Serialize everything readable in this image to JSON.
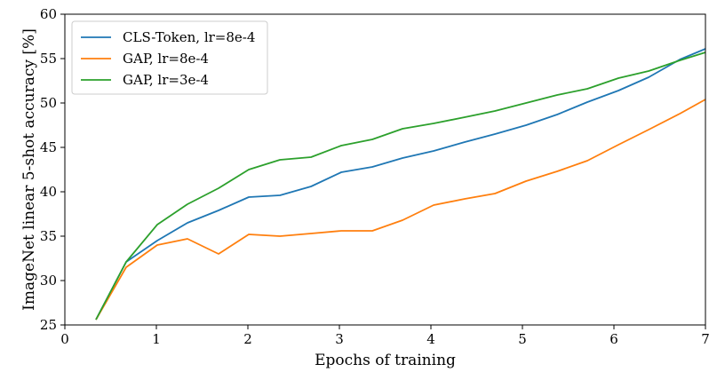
{
  "chart_data": {
    "type": "line",
    "xlabel": "Epochs of training",
    "ylabel": "ImageNet linear 5-shot accuracy [%]",
    "xlim": [
      0,
      7
    ],
    "ylim": [
      25,
      60
    ],
    "xticks": [
      0,
      1,
      2,
      3,
      4,
      5,
      6,
      7
    ],
    "yticks": [
      25,
      30,
      35,
      40,
      45,
      50,
      55,
      60
    ],
    "grid": false,
    "legend_position": "top-left",
    "x": [
      0.34,
      0.67,
      1.01,
      1.34,
      1.68,
      2.01,
      2.35,
      2.69,
      3.02,
      3.36,
      3.69,
      4.03,
      4.37,
      4.7,
      5.04,
      5.38,
      5.71,
      6.05,
      6.38,
      6.72,
      7.0
    ],
    "series": [
      {
        "name": "CLS-Token, lr=8e-4",
        "color": "#1f77b4",
        "values": [
          25.6,
          32.1,
          34.5,
          36.5,
          37.9,
          39.4,
          39.6,
          40.6,
          42.2,
          42.8,
          43.8,
          44.6,
          45.6,
          46.5,
          47.5,
          48.7,
          50.1,
          51.4,
          52.9,
          54.9,
          56.1
        ]
      },
      {
        "name": "GAP, lr=8e-4",
        "color": "#ff7f0e",
        "values": [
          25.6,
          31.5,
          34.0,
          34.7,
          33.0,
          35.2,
          35.0,
          35.3,
          35.6,
          35.6,
          36.8,
          38.5,
          39.2,
          39.8,
          41.2,
          42.3,
          43.5,
          45.3,
          47.0,
          48.8,
          50.4
        ]
      },
      {
        "name": "GAP, lr=3e-4",
        "color": "#2ca02c",
        "values": [
          25.6,
          32.1,
          36.3,
          38.6,
          40.4,
          42.5,
          43.6,
          43.9,
          45.2,
          45.9,
          47.1,
          47.7,
          48.4,
          49.1,
          50.0,
          50.9,
          51.6,
          52.8,
          53.6,
          54.8,
          55.7
        ]
      }
    ]
  }
}
